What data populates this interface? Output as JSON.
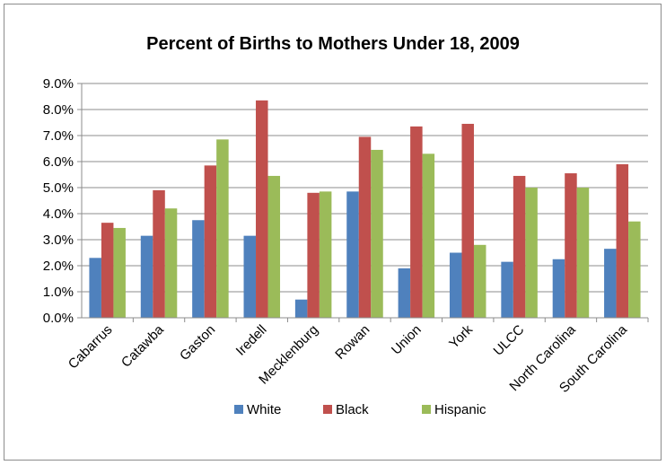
{
  "chart_data": {
    "type": "bar",
    "title": "Percent of Births to Mothers Under 18, 2009",
    "xlabel": "",
    "ylabel": "",
    "ylim": [
      0,
      9
    ],
    "y_ticks": [
      "0.0%",
      "1.0%",
      "2.0%",
      "3.0%",
      "4.0%",
      "5.0%",
      "6.0%",
      "7.0%",
      "8.0%",
      "9.0%"
    ],
    "grid": true,
    "legend_position": "bottom",
    "categories": [
      "Cabarrus",
      "Catawba",
      "Gaston",
      "Iredell",
      "Mecklenburg",
      "Rowan",
      "Union",
      "York",
      "ULCC",
      "North Carolina",
      "South Carolina"
    ],
    "series": [
      {
        "name": "White",
        "color": "#4f81bd",
        "values": [
          2.3,
          3.15,
          3.75,
          3.15,
          0.7,
          4.85,
          1.9,
          2.5,
          2.15,
          2.25,
          2.65
        ]
      },
      {
        "name": "Black",
        "color": "#c0504d",
        "values": [
          3.65,
          4.9,
          5.85,
          8.35,
          4.8,
          6.95,
          7.35,
          7.45,
          5.45,
          5.55,
          5.9
        ]
      },
      {
        "name": "Hispanic",
        "color": "#9bbb59",
        "values": [
          3.45,
          4.2,
          6.85,
          5.45,
          4.85,
          6.45,
          6.3,
          2.8,
          5.0,
          5.0,
          3.7
        ]
      }
    ]
  }
}
